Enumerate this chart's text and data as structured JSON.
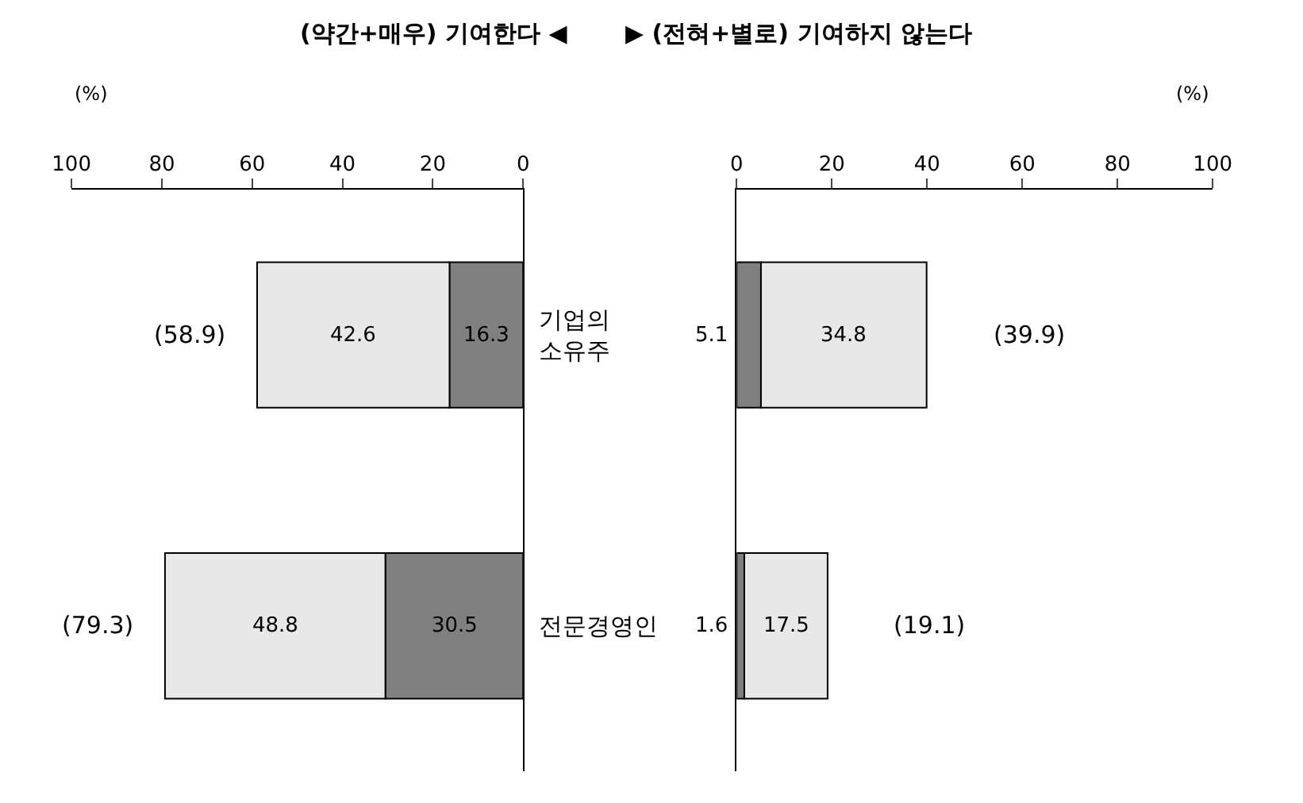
{
  "chart_data": [
    {
      "type": "bar",
      "orientation": "horizontal",
      "stacked": true,
      "title": "(약간+매우) 기여한다 ◀",
      "xlabel": "(%)",
      "categories": [
        "기업의 소유주",
        "전문경영인"
      ],
      "series": [
        {
          "color": "#808080",
          "values": [
            16.3,
            30.5
          ]
        },
        {
          "color": "#e8e8e8",
          "values": [
            42.6,
            48.8
          ]
        }
      ],
      "xlim": [
        100,
        0
      ],
      "xticks": [
        100,
        80,
        60,
        40,
        20,
        0
      ],
      "data_labels": true,
      "totals": [
        "(58.9)",
        "(79.3)"
      ]
    },
    {
      "type": "bar",
      "orientation": "horizontal",
      "stacked": true,
      "title": "▶ (전혀+별로) 기여하지 않는다",
      "xlabel": "(%)",
      "categories": [
        null,
        null
      ],
      "tick_labels": "x",
      "series": [
        {
          "color": "#808080",
          "values": [
            5.1,
            1.6
          ]
        },
        {
          "color": "#e8e8e8",
          "values": [
            34.8,
            17.5
          ]
        }
      ],
      "xlim": [
        0,
        100
      ],
      "xticks": [
        0,
        20,
        40,
        60,
        80,
        100
      ],
      "data_labels": true,
      "totals": [
        "(39.9)",
        "(19.1)"
      ]
    }
  ]
}
